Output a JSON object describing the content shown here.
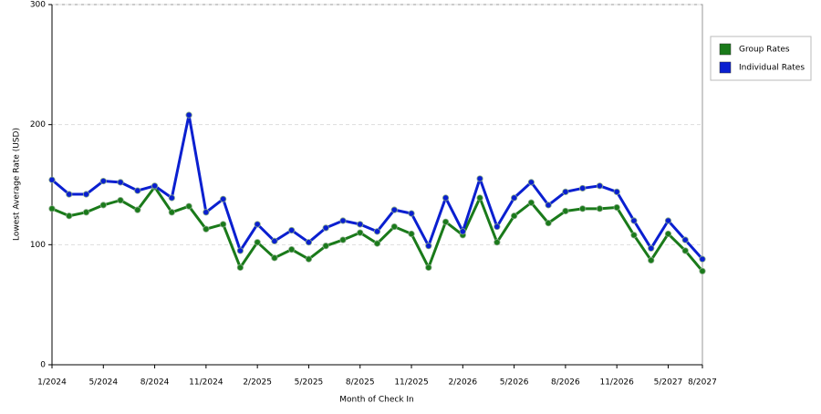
{
  "chart_data": {
    "type": "line",
    "x_label": "Month of Check In",
    "y_label": "Lowest Average Rate (USD)",
    "categories": [
      "1/2024",
      null,
      null,
      "5/2024",
      null,
      null,
      "8/2024",
      null,
      null,
      "11/2024",
      null,
      null,
      "2/2025",
      null,
      null,
      "5/2025",
      null,
      null,
      "8/2025",
      null,
      null,
      "11/2025",
      null,
      null,
      "2/2026",
      null,
      null,
      "5/2026",
      null,
      null,
      "8/2026",
      null,
      null,
      "11/2026",
      null,
      null,
      "5/2027",
      null,
      "8/2027"
    ],
    "series": [
      {
        "name": "Group Rates",
        "color": "#1a7a1a",
        "values": [
          130,
          124,
          127,
          133,
          137,
          129,
          148,
          127,
          132,
          113,
          117,
          81,
          102,
          89,
          96,
          88,
          99,
          104,
          110,
          101,
          115,
          109,
          81,
          119,
          108,
          139,
          102,
          124,
          135,
          118,
          128,
          130,
          130,
          131,
          108,
          87,
          109,
          95,
          78
        ]
      },
      {
        "name": "Individual Rates",
        "color": "#0a1fd0",
        "values": [
          154,
          142,
          142,
          153,
          152,
          145,
          149,
          139,
          208,
          127,
          138,
          95,
          117,
          103,
          112,
          102,
          114,
          120,
          117,
          111,
          129,
          126,
          99,
          139,
          111,
          155,
          115,
          139,
          152,
          133,
          144,
          147,
          149,
          144,
          120,
          97,
          120,
          104,
          88
        ]
      }
    ],
    "ylim": [
      0,
      300
    ],
    "yticks": [
      0,
      100,
      200,
      300
    ],
    "grid": true,
    "legend": "right"
  }
}
